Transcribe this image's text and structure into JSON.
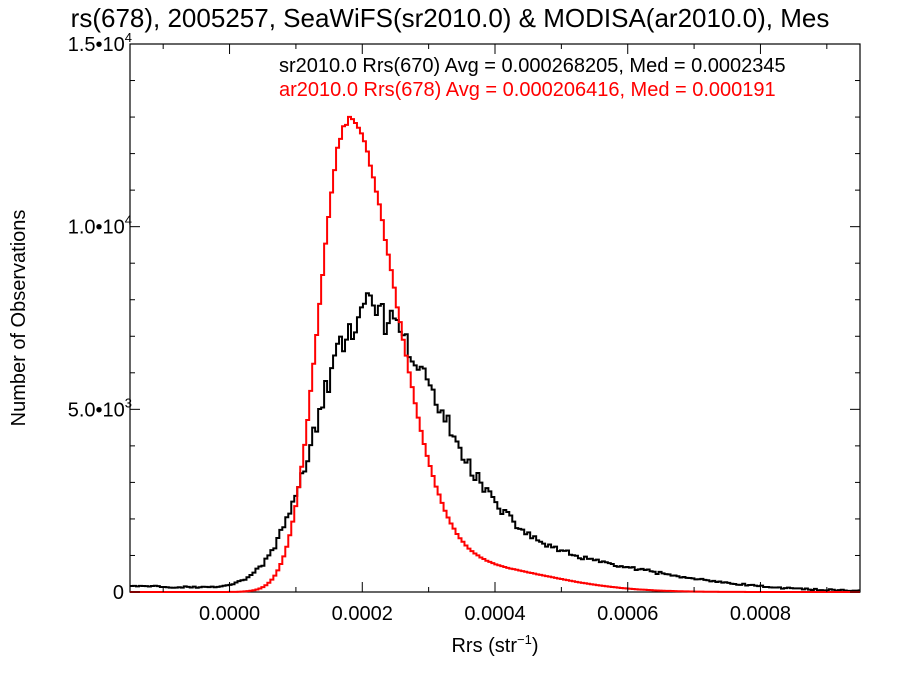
{
  "chart_data": {
    "type": "step-histogram",
    "title": "rs(678), 2005257, SeaWiFS(sr2010.0) & MODISA(ar2010.0), Mes",
    "xlabel_main": "Rrs (str",
    "xlabel_sup": "−1",
    "xlabel_close": ")",
    "ylabel": "Number of Observations",
    "xlim": [
      -0.00015,
      0.00095
    ],
    "ylim": [
      0,
      15000
    ],
    "x_ticks": [
      {
        "value": 0.0,
        "label": "0.0000"
      },
      {
        "value": 0.0002,
        "label": "0.0002"
      },
      {
        "value": 0.0004,
        "label": "0.0004"
      },
      {
        "value": 0.0006,
        "label": "0.0006"
      },
      {
        "value": 0.0008,
        "label": "0.0008"
      }
    ],
    "y_ticks": [
      {
        "value": 0,
        "mantissa": "0",
        "exponent": ""
      },
      {
        "value": 5000,
        "mantissa": "5.0•10",
        "exponent": "3"
      },
      {
        "value": 10000,
        "mantissa": "1.0•10",
        "exponent": "4"
      },
      {
        "value": 15000,
        "mantissa": "1.5•10",
        "exponent": "4"
      }
    ],
    "series": [
      {
        "name": "sr2010.0 Rrs(670) Avg = 0.000268205, Med = 0.0002345",
        "color": "#000000",
        "bin_width": 4.5e-06,
        "peak_center": 0.000198,
        "peak_value": 7350,
        "jitter": 420
      },
      {
        "name": "ar2010.0 Rrs(678) Avg = 0.000206416, Med = 0.000191",
        "color": "#ff0000",
        "bin_width": 4.5e-06,
        "peak_center": 0.000177,
        "peak_value": 12800,
        "jitter": 80
      }
    ]
  }
}
